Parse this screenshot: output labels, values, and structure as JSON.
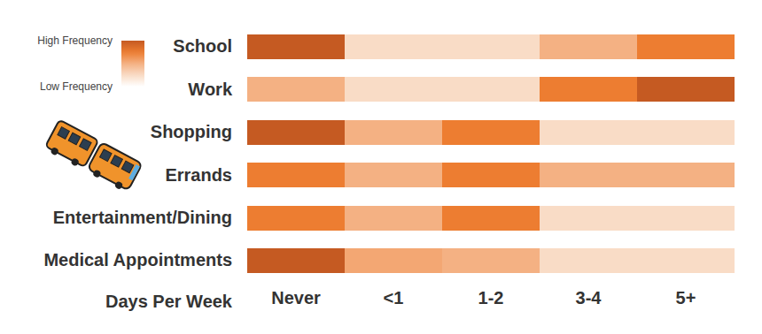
{
  "chart_data": {
    "type": "heatmap",
    "x": [
      "Never",
      "<1",
      "1-2",
      "3-4",
      "5+"
    ],
    "y": [
      "School",
      "Work",
      "Shopping",
      "Errands",
      "Entertainment/Dining",
      "Medical Appointments"
    ],
    "x_label": "Days Per Week",
    "values": [
      [
        4,
        1,
        1,
        2,
        3
      ],
      [
        2,
        1,
        1,
        3,
        4
      ],
      [
        4,
        2,
        3,
        1,
        1
      ],
      [
        3,
        2,
        3,
        2,
        2
      ],
      [
        3,
        2,
        3,
        1,
        1
      ],
      [
        4,
        2.2,
        2,
        1,
        1
      ]
    ],
    "colorbar": {
      "range": [
        0,
        4
      ],
      "ticks": [
        {
          "value": 4,
          "label": "High Frequency"
        },
        {
          "value": 0,
          "label": "Low Frequency"
        }
      ]
    }
  }
}
